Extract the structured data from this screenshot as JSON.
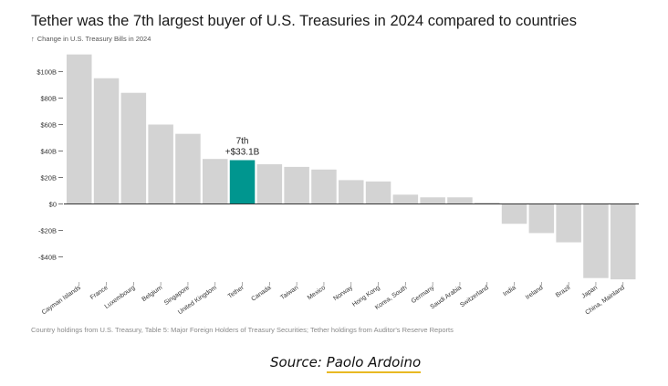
{
  "title": "Tether was the 7th largest buyer of U.S. Treasuries in 2024 compared to countries",
  "subtitle": "Change in U.S. Treasury Bills in 2024",
  "subtitle_icon": "up-arrow-icon",
  "footnote": "Country holdings from U.S. Treasury, Table 5: Major Foreign Holders of Treasury Securities; Tether holdings from Auditor's Reserve Reports",
  "source_prefix": "Source: ",
  "source_author": "Paolo Ardoino",
  "colors": {
    "bar": "#d3d3d3",
    "highlight": "#00968f",
    "accent_underline": "#e8b923"
  },
  "chart_data": {
    "type": "bar",
    "title": "Tether was the 7th largest buyer of U.S. Treasuries in 2024 compared to countries",
    "ylabel": "Change in U.S. Treasury Bills in 2024",
    "xlabel": "",
    "ylim": [
      -56,
      116
    ],
    "yticks": [
      -40,
      -20,
      0,
      20,
      40,
      60,
      80,
      100
    ],
    "ytick_labels": [
      "-$40B",
      "-$20B",
      "$0",
      "$20B",
      "$40B",
      "$60B",
      "$80B",
      "$100B"
    ],
    "categories": [
      "Cayman Islands",
      "France",
      "Luxembourg",
      "Belgium",
      "Singapore",
      "United Kingdom",
      "Tether",
      "Canada",
      "Taiwan",
      "Mexico",
      "Norway",
      "Hong Kong",
      "Korea, South",
      "Germany",
      "Saudi Arabia",
      "Switzerland",
      "India",
      "Ireland",
      "Brazil",
      "Japan",
      "China, Mainland"
    ],
    "values": [
      113,
      95,
      84,
      60,
      53,
      34,
      33.1,
      30,
      28,
      26,
      18,
      17,
      7,
      5,
      5,
      1,
      -15,
      -22,
      -29,
      -56,
      -57
    ],
    "highlight_index": 6,
    "annotation": {
      "category": "Tether",
      "rank": "7th",
      "value_label": "+$33.1B"
    },
    "grid": false,
    "legend": "none"
  }
}
